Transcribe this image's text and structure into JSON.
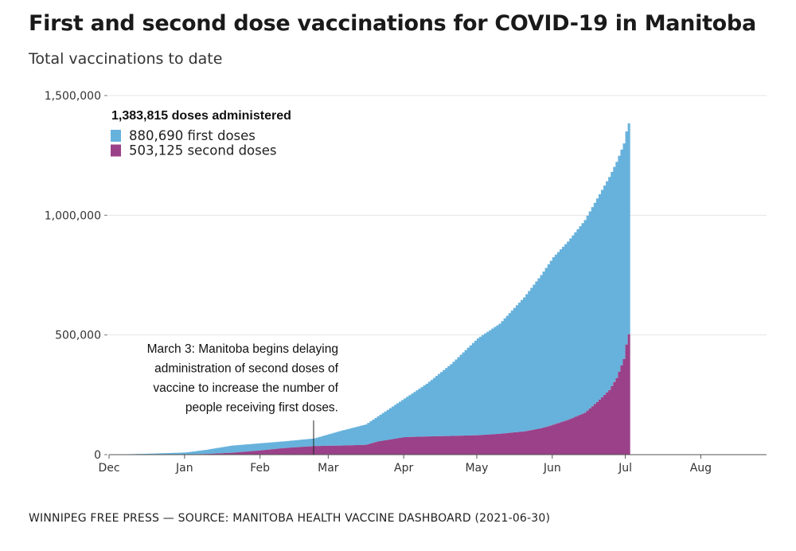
{
  "title": "First and second dose vaccinations for COVID-19 in Manitoba",
  "subtitle": "Total vaccinations to date",
  "source": "WINNIPEG FREE PRESS — SOURCE: MANITOBA HEALTH VACCINE DASHBOARD (2021-06-30)",
  "colors": {
    "first": "#67b2dc",
    "second": "#9b4189",
    "grid": "#e4e4e4",
    "axis": "#444444"
  },
  "chart_data": {
    "type": "area",
    "stacked": true,
    "title": "First and second dose vaccinations for COVID-19 in Manitoba",
    "subtitle": "Total vaccinations to date",
    "x_unit": "days since Dec 1, 2020",
    "x_ticks": [
      {
        "label": "Dec",
        "day": 0
      },
      {
        "label": "Jan",
        "day": 31
      },
      {
        "label": "Feb",
        "day": 62
      },
      {
        "label": "Mar",
        "day": 90
      },
      {
        "label": "Apr",
        "day": 121
      },
      {
        "label": "May",
        "day": 151
      },
      {
        "label": "Jun",
        "day": 182
      },
      {
        "label": "Jul",
        "day": 212
      },
      {
        "label": "Aug",
        "day": 243
      }
    ],
    "xlim": [
      0,
      270
    ],
    "ylim": [
      0,
      1500000
    ],
    "y_ticks": [
      {
        "label": "0",
        "value": 0
      },
      {
        "label": "500,000",
        "value": 500000
      },
      {
        "label": "1,000,000",
        "value": 1000000
      },
      {
        "label": "1,500,000",
        "value": 1500000
      }
    ],
    "legend": {
      "total_label": "1,383,815 doses administered",
      "position": "top-left",
      "items": [
        {
          "label": "880,690 first doses",
          "series": "first"
        },
        {
          "label": "503,125 second doses",
          "series": "second"
        }
      ]
    },
    "annotation": {
      "day": 84,
      "lines": [
        "March 3: Manitoba begins delaying",
        "administration of second doses of",
        "vaccine to increase the number of",
        "people receiving first doses."
      ]
    },
    "series": [
      {
        "name": "Second doses",
        "key": "second",
        "points": [
          [
            0,
            0
          ],
          [
            16,
            0
          ],
          [
            31,
            1000
          ],
          [
            40,
            3000
          ],
          [
            50,
            8000
          ],
          [
            62,
            18000
          ],
          [
            72,
            28000
          ],
          [
            84,
            36000
          ],
          [
            95,
            38000
          ],
          [
            105,
            41000
          ],
          [
            110,
            55000
          ],
          [
            121,
            73000
          ],
          [
            130,
            76000
          ],
          [
            140,
            78000
          ],
          [
            151,
            81000
          ],
          [
            160,
            87000
          ],
          [
            170,
            97000
          ],
          [
            177,
            110000
          ],
          [
            182,
            125000
          ],
          [
            188,
            145000
          ],
          [
            195,
            175000
          ],
          [
            200,
            220000
          ],
          [
            205,
            270000
          ],
          [
            208,
            320000
          ],
          [
            211,
            400000
          ],
          [
            212,
            460000
          ],
          [
            213,
            503125
          ]
        ]
      },
      {
        "name": "First doses",
        "key": "first",
        "points": [
          [
            0,
            0
          ],
          [
            16,
            4000
          ],
          [
            31,
            8000
          ],
          [
            40,
            18000
          ],
          [
            50,
            30000
          ],
          [
            62,
            30000
          ],
          [
            72,
            28000
          ],
          [
            84,
            32000
          ],
          [
            95,
            62000
          ],
          [
            105,
            85000
          ],
          [
            110,
            105000
          ],
          [
            121,
            162000
          ],
          [
            130,
            220000
          ],
          [
            140,
            300000
          ],
          [
            151,
            405000
          ],
          [
            160,
            460000
          ],
          [
            170,
            560000
          ],
          [
            177,
            640000
          ],
          [
            182,
            700000
          ],
          [
            188,
            745000
          ],
          [
            195,
            805000
          ],
          [
            200,
            850000
          ],
          [
            205,
            890000
          ],
          [
            208,
            903000
          ],
          [
            211,
            900000
          ],
          [
            212,
            890000
          ],
          [
            213,
            880690
          ]
        ]
      }
    ]
  }
}
